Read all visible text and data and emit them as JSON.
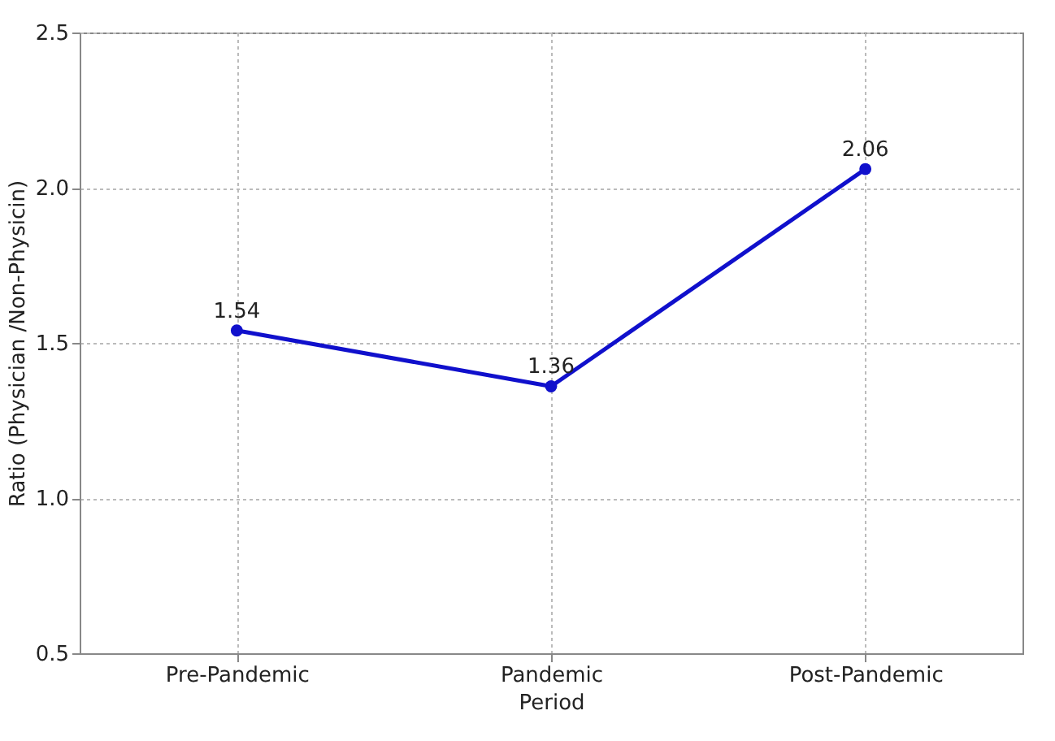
{
  "chart_data": {
    "type": "line",
    "xlabel": "Period",
    "ylabel": "Ratio (Physician /Non-Physicin)",
    "categories": [
      "Pre-Pandemic",
      "Pandemic",
      "Post-Pandemic"
    ],
    "series": [
      {
        "color": "#1010cc",
        "values": [
          1.54,
          1.36,
          2.06
        ]
      }
    ],
    "ylim": [
      0.5,
      2.5
    ],
    "yticks": [
      {
        "value": 0.5,
        "label": "0.5"
      },
      {
        "value": 1,
        "label": "1.0"
      },
      {
        "value": 1.5,
        "label": "1.5"
      },
      {
        "value": 2,
        "label": "2.0"
      },
      {
        "value": 2.5,
        "label": "2.5"
      }
    ],
    "grid": true,
    "marker": "circle",
    "line_style": "solid",
    "data_labels": true
  }
}
